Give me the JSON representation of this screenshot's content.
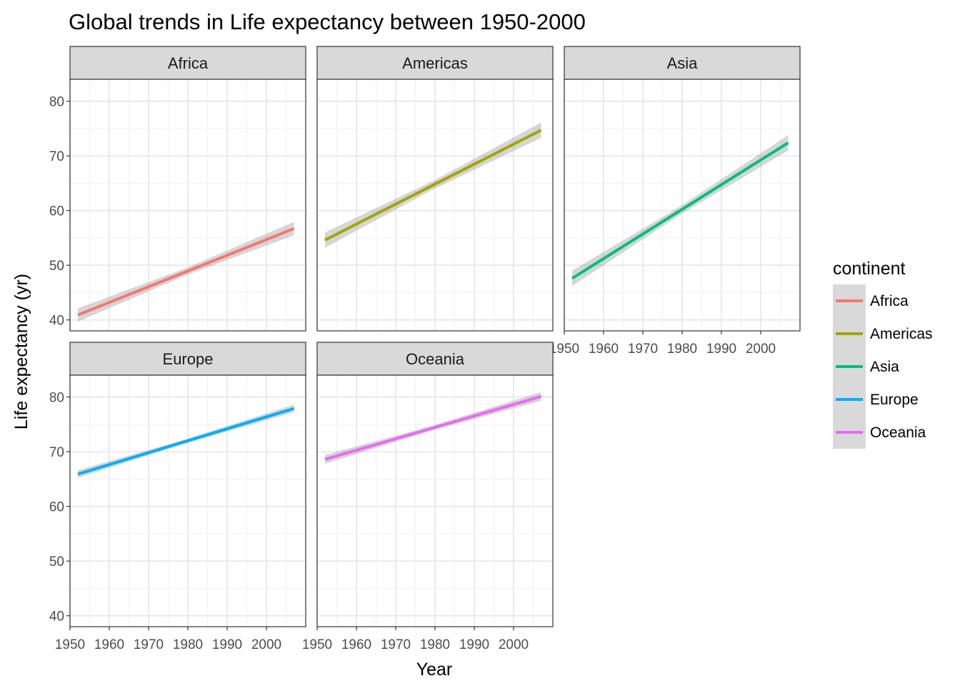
{
  "chart_data": {
    "type": "line",
    "title": "Global trends in Life expectancy between 1950-2000",
    "xlabel": "Year",
    "ylabel": "Life expectancy (yr)",
    "xlim": [
      1950,
      2010
    ],
    "ylim": [
      38,
      84
    ],
    "x_ticks": [
      1950,
      1960,
      1970,
      1980,
      1990,
      2000
    ],
    "y_ticks": [
      40,
      50,
      60,
      70,
      80
    ],
    "grid": true,
    "legend": {
      "title": "continent",
      "position": "right"
    },
    "facets": [
      "Africa",
      "Americas",
      "Asia",
      "Europe",
      "Oceania"
    ],
    "series": [
      {
        "name": "Africa",
        "color": "#F8766D",
        "x": [
          1952,
          2007
        ],
        "y": [
          40.9,
          56.7
        ],
        "band": 1.2
      },
      {
        "name": "Americas",
        "color": "#A3A500",
        "x": [
          1952,
          2007
        ],
        "y": [
          54.6,
          74.7
        ],
        "band": 1.4
      },
      {
        "name": "Asia",
        "color": "#00BF7D",
        "x": [
          1952,
          2007
        ],
        "y": [
          47.6,
          72.4
        ],
        "band": 1.4
      },
      {
        "name": "Europe",
        "color": "#00B0F6",
        "x": [
          1952,
          2007
        ],
        "y": [
          65.9,
          77.9
        ],
        "band": 0.7
      },
      {
        "name": "Oceania",
        "color": "#E76BF3",
        "x": [
          1952,
          2007
        ],
        "y": [
          68.6,
          80.1
        ],
        "band": 0.8
      }
    ]
  }
}
